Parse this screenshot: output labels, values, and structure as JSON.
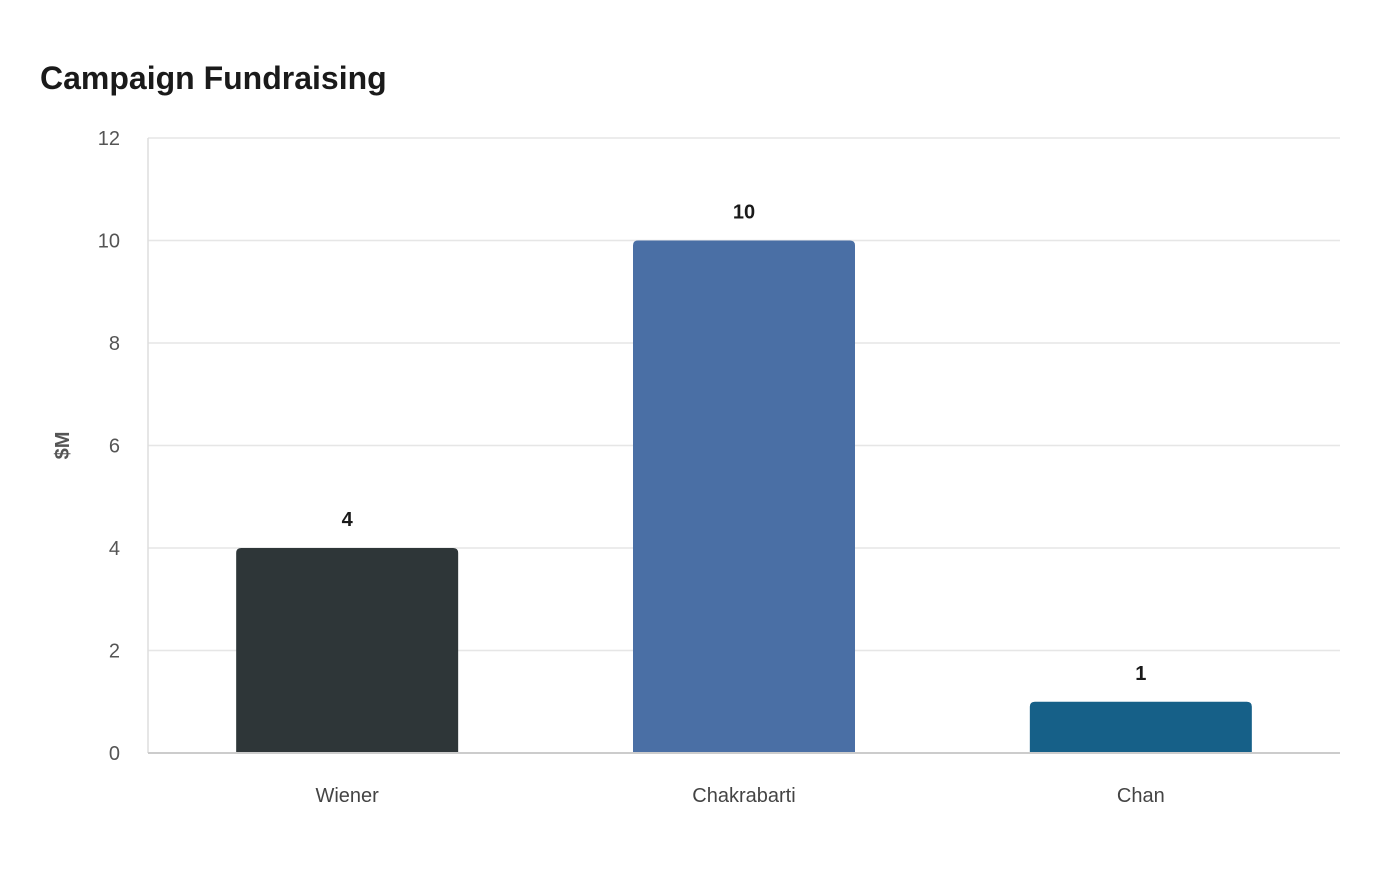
{
  "chart_data": {
    "type": "bar",
    "title": "Campaign Fundraising",
    "xlabel": "",
    "ylabel": "$M",
    "categories": [
      "Wiener",
      "Chakrabarti",
      "Chan"
    ],
    "values": [
      4,
      10,
      1
    ],
    "colors": [
      "#2e3638",
      "#4a6fa5",
      "#166088"
    ],
    "ylim": [
      0,
      12
    ],
    "yticks": [
      0,
      2,
      4,
      6,
      8,
      10,
      12
    ],
    "grid": true,
    "legend": "none"
  }
}
